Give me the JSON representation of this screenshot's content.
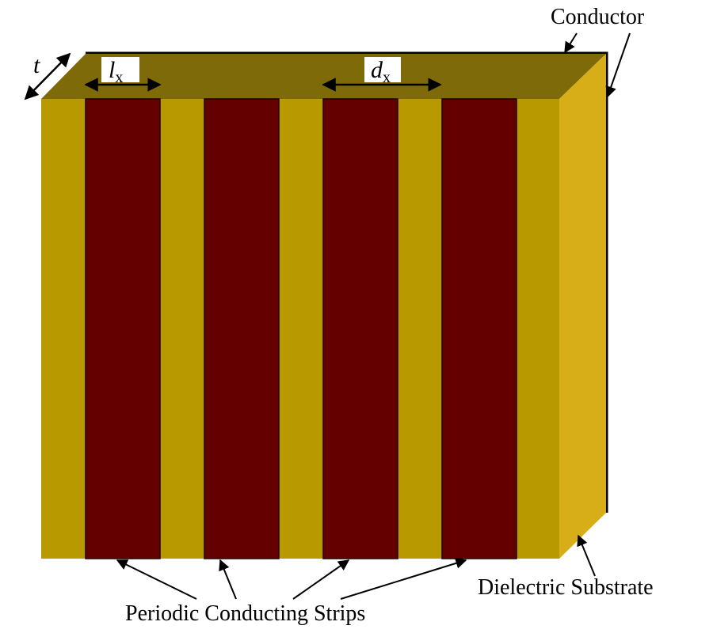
{
  "labels": {
    "conductor": "Conductor",
    "dielectric_substrate": "Dielectric Substrate",
    "periodic_strips": "Periodic Conducting Strips"
  },
  "dimensions": {
    "thickness": "t",
    "strip_width_symbol": "l",
    "strip_width_subscript": "x",
    "period_symbol": "d",
    "period_subscript": "x"
  },
  "structure": {
    "strip_count": 4
  },
  "colors": {
    "substrate_front": "#B89A00",
    "substrate_top": "#7F6A0A",
    "substrate_side": "#D7AE18",
    "strip": "#640000",
    "conductor": "#000000"
  }
}
